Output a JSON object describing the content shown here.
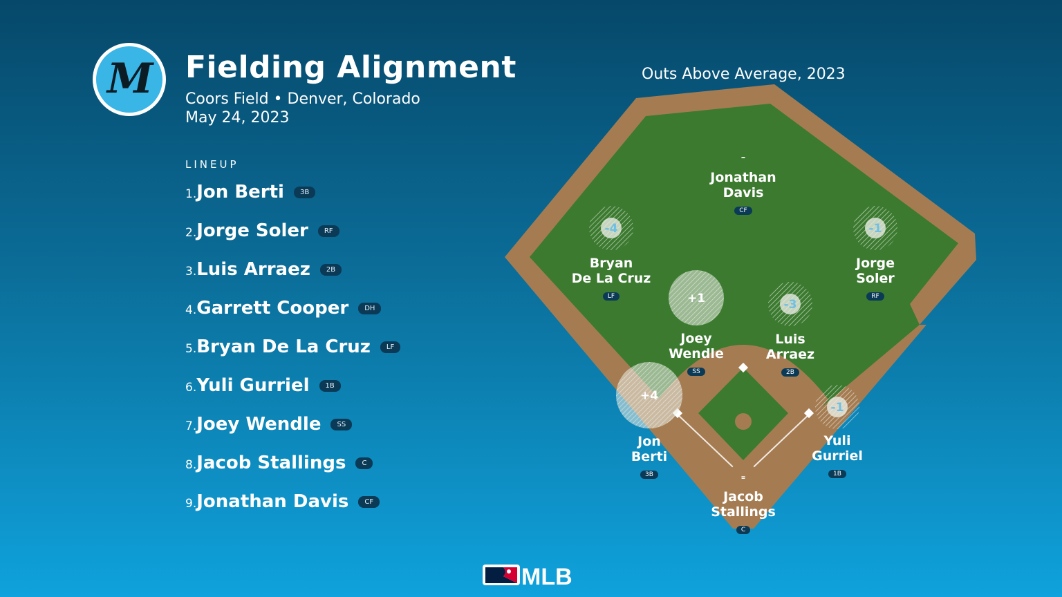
{
  "header": {
    "title": "Fielding Alignment",
    "venue": "Coors Field • Denver, Colorado",
    "date": "May 24, 2023"
  },
  "logo": {
    "team_letter": "M"
  },
  "lineup": {
    "heading": "LINEUP",
    "players": [
      {
        "num": "1.",
        "name": "Jon Berti",
        "pos": "3B"
      },
      {
        "num": "2.",
        "name": "Jorge Soler",
        "pos": "RF"
      },
      {
        "num": "3.",
        "name": "Luis Arraez",
        "pos": "2B"
      },
      {
        "num": "4.",
        "name": "Garrett Cooper",
        "pos": "DH"
      },
      {
        "num": "5.",
        "name": "Bryan De La Cruz",
        "pos": "LF"
      },
      {
        "num": "6.",
        "name": "Yuli Gurriel",
        "pos": "1B"
      },
      {
        "num": "7.",
        "name": "Joey Wendle",
        "pos": "SS"
      },
      {
        "num": "8.",
        "name": "Jacob Stallings",
        "pos": "C"
      },
      {
        "num": "9.",
        "name": "Jonathan Davis",
        "pos": "CF"
      }
    ]
  },
  "field": {
    "title": "Outs Above Average, 2023",
    "fielders": [
      {
        "line1": "Jonathan",
        "line2": "Davis",
        "pos": "CF",
        "oaa": "–"
      },
      {
        "line1": "Bryan",
        "line2": "De La Cruz",
        "pos": "LF",
        "oaa": "-4"
      },
      {
        "line1": "Jorge",
        "line2": "Soler",
        "pos": "RF",
        "oaa": "-1"
      },
      {
        "line1": "Joey",
        "line2": "Wendle",
        "pos": "SS",
        "oaa": "+1"
      },
      {
        "line1": "Luis",
        "line2": "Arraez",
        "pos": "2B",
        "oaa": "-3"
      },
      {
        "line1": "Jon",
        "line2": "Berti",
        "pos": "3B",
        "oaa": "+4"
      },
      {
        "line1": "Yuli",
        "line2": "Gurriel",
        "pos": "1B",
        "oaa": "-1"
      },
      {
        "line1": "Jacob",
        "line2": "Stallings",
        "pos": "C",
        "oaa": "–"
      }
    ]
  },
  "footer": {
    "brand": "MLB"
  },
  "colors": {
    "grass": "#3c7a30",
    "dirt": "#a57c52",
    "badge": "#0b3a57",
    "mlb_red": "#d50032",
    "mlb_blue": "#041e42"
  }
}
